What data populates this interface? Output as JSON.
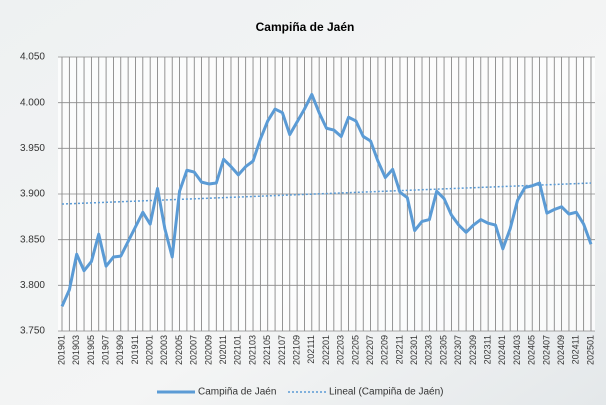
{
  "chart_data": {
    "type": "line",
    "title": "Campiña de Jaén",
    "categories": [
      "201901",
      null,
      "201903",
      null,
      "201905",
      null,
      "201907",
      null,
      "201909",
      null,
      "201911",
      null,
      "202001",
      null,
      "202003",
      null,
      "202005",
      null,
      "202007",
      null,
      "202009",
      null,
      "202011",
      null,
      "202101",
      null,
      "202103",
      null,
      "202105",
      null,
      "202107",
      null,
      "202109",
      null,
      "202111",
      null,
      "202201",
      null,
      "202203",
      null,
      "202205",
      null,
      "202207",
      null,
      "202209",
      null,
      "202211",
      null,
      "202301",
      null,
      "202303",
      null,
      "202305",
      null,
      "202307",
      null,
      "202309",
      null,
      "202311",
      null,
      "202401",
      null,
      "202403",
      null,
      "202405",
      null,
      "202407",
      null,
      "202409",
      null,
      "202411",
      null,
      "202501"
    ],
    "series": [
      {
        "name": "Campiña de Jaén",
        "color": "#5b9bd5",
        "values": [
          3.777,
          3.795,
          3.834,
          3.816,
          3.826,
          3.856,
          3.821,
          3.831,
          3.832,
          3.848,
          3.864,
          3.88,
          3.867,
          3.906,
          3.862,
          3.831,
          3.903,
          3.926,
          3.924,
          3.913,
          3.911,
          3.912,
          3.938,
          3.93,
          3.921,
          3.93,
          3.936,
          3.96,
          3.98,
          3.993,
          3.989,
          3.965,
          3.979,
          3.993,
          4.009,
          3.989,
          3.972,
          3.97,
          3.963,
          3.984,
          3.98,
          3.963,
          3.958,
          3.936,
          3.918,
          3.927,
          3.902,
          3.896,
          3.86,
          3.87,
          3.872,
          3.903,
          3.895,
          3.877,
          3.866,
          3.858,
          3.866,
          3.872,
          3.868,
          3.866,
          3.84,
          3.862,
          3.893,
          3.907,
          3.909,
          3.912,
          3.879,
          3.883,
          3.886,
          3.878,
          3.88,
          3.867,
          3.845
        ]
      }
    ],
    "trend": {
      "name": "Lineal (Campiña de Jaén)",
      "color": "#5b9bd5",
      "start": 3.889,
      "end": 3.912
    },
    "ylim": [
      3.75,
      4.05
    ],
    "yticks": [
      {
        "value": 3.75,
        "label": "3.750"
      },
      {
        "value": 3.8,
        "label": "3.800"
      },
      {
        "value": 3.85,
        "label": "3.850"
      },
      {
        "value": 3.9,
        "label": "3.900"
      },
      {
        "value": 3.95,
        "label": "3.950"
      },
      {
        "value": 4.0,
        "label": "4.000"
      },
      {
        "value": 4.05,
        "label": "4.050"
      }
    ],
    "grid": true
  }
}
